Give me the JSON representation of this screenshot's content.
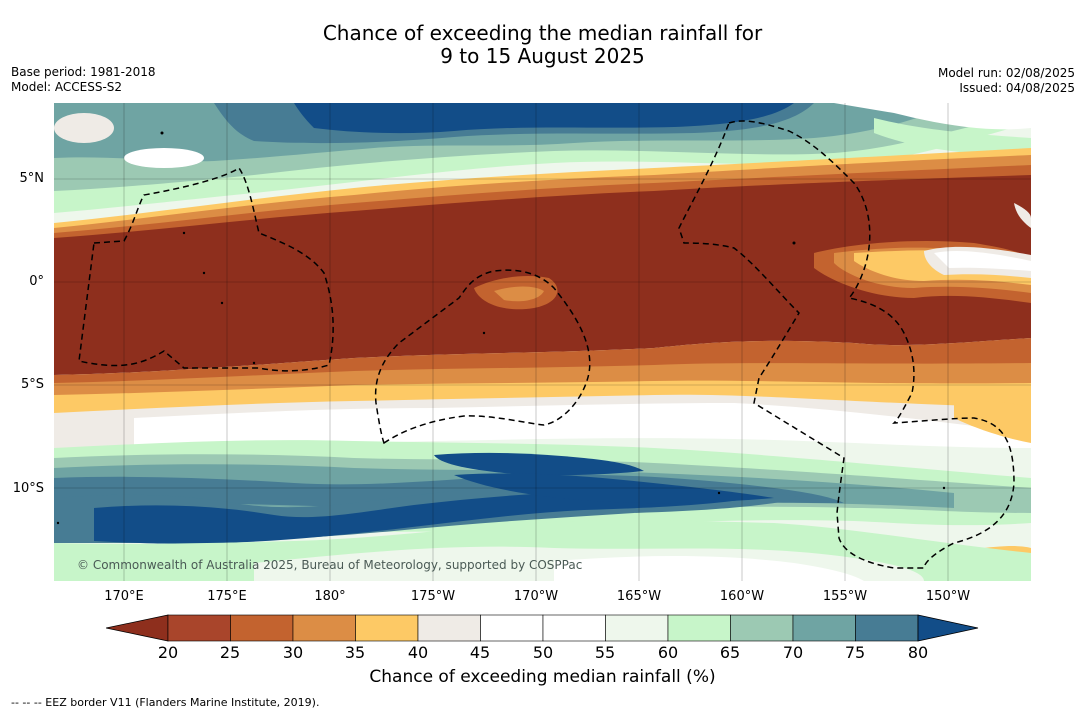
{
  "title_line1": "Chance of exceeding the median rainfall for",
  "title_line2": "9 to 15 August 2025",
  "base_period": "Base period: 1981-2018",
  "model": "Model: ACCESS-S2",
  "model_run": "Model run: 02/08/2025",
  "issued": "Issued: 04/08/2025",
  "lat_labels": [
    "5°N",
    "0°",
    "5°S",
    "10°S"
  ],
  "lon_labels": [
    "170°E",
    "175°E",
    "180°",
    "175°W",
    "170°W",
    "165°W",
    "160°W",
    "155°W",
    "150°W"
  ],
  "credit": "© Commonwealth of Australia 2025, Bureau of Meteorology, supported by COSPPac",
  "colorbar": {
    "ticks": [
      "20",
      "25",
      "30",
      "35",
      "40",
      "45",
      "50",
      "55",
      "60",
      "65",
      "70",
      "75",
      "80"
    ],
    "label": "Chance of exceeding median rainfall (%)",
    "colors": {
      "below20": "#8e2f1d",
      "c20_25": "#a9452b",
      "c25_30": "#c3632f",
      "c30_35": "#dc8d45",
      "c35_40": "#fdc965",
      "c40_45": "#efebe6",
      "c45_50": "#ffffff",
      "c50_55": "#ffffff",
      "c55_60": "#eef7ec",
      "c60_65": "#c7f5c9",
      "c65_70": "#9cc9b3",
      "c70_75": "#6fa4a3",
      "c75_80": "#477c94",
      "above80": "#124d88"
    }
  },
  "legend_footnote": "--  --  -- EEZ border V11 (Flanders Marine Institute, 2019)."
}
